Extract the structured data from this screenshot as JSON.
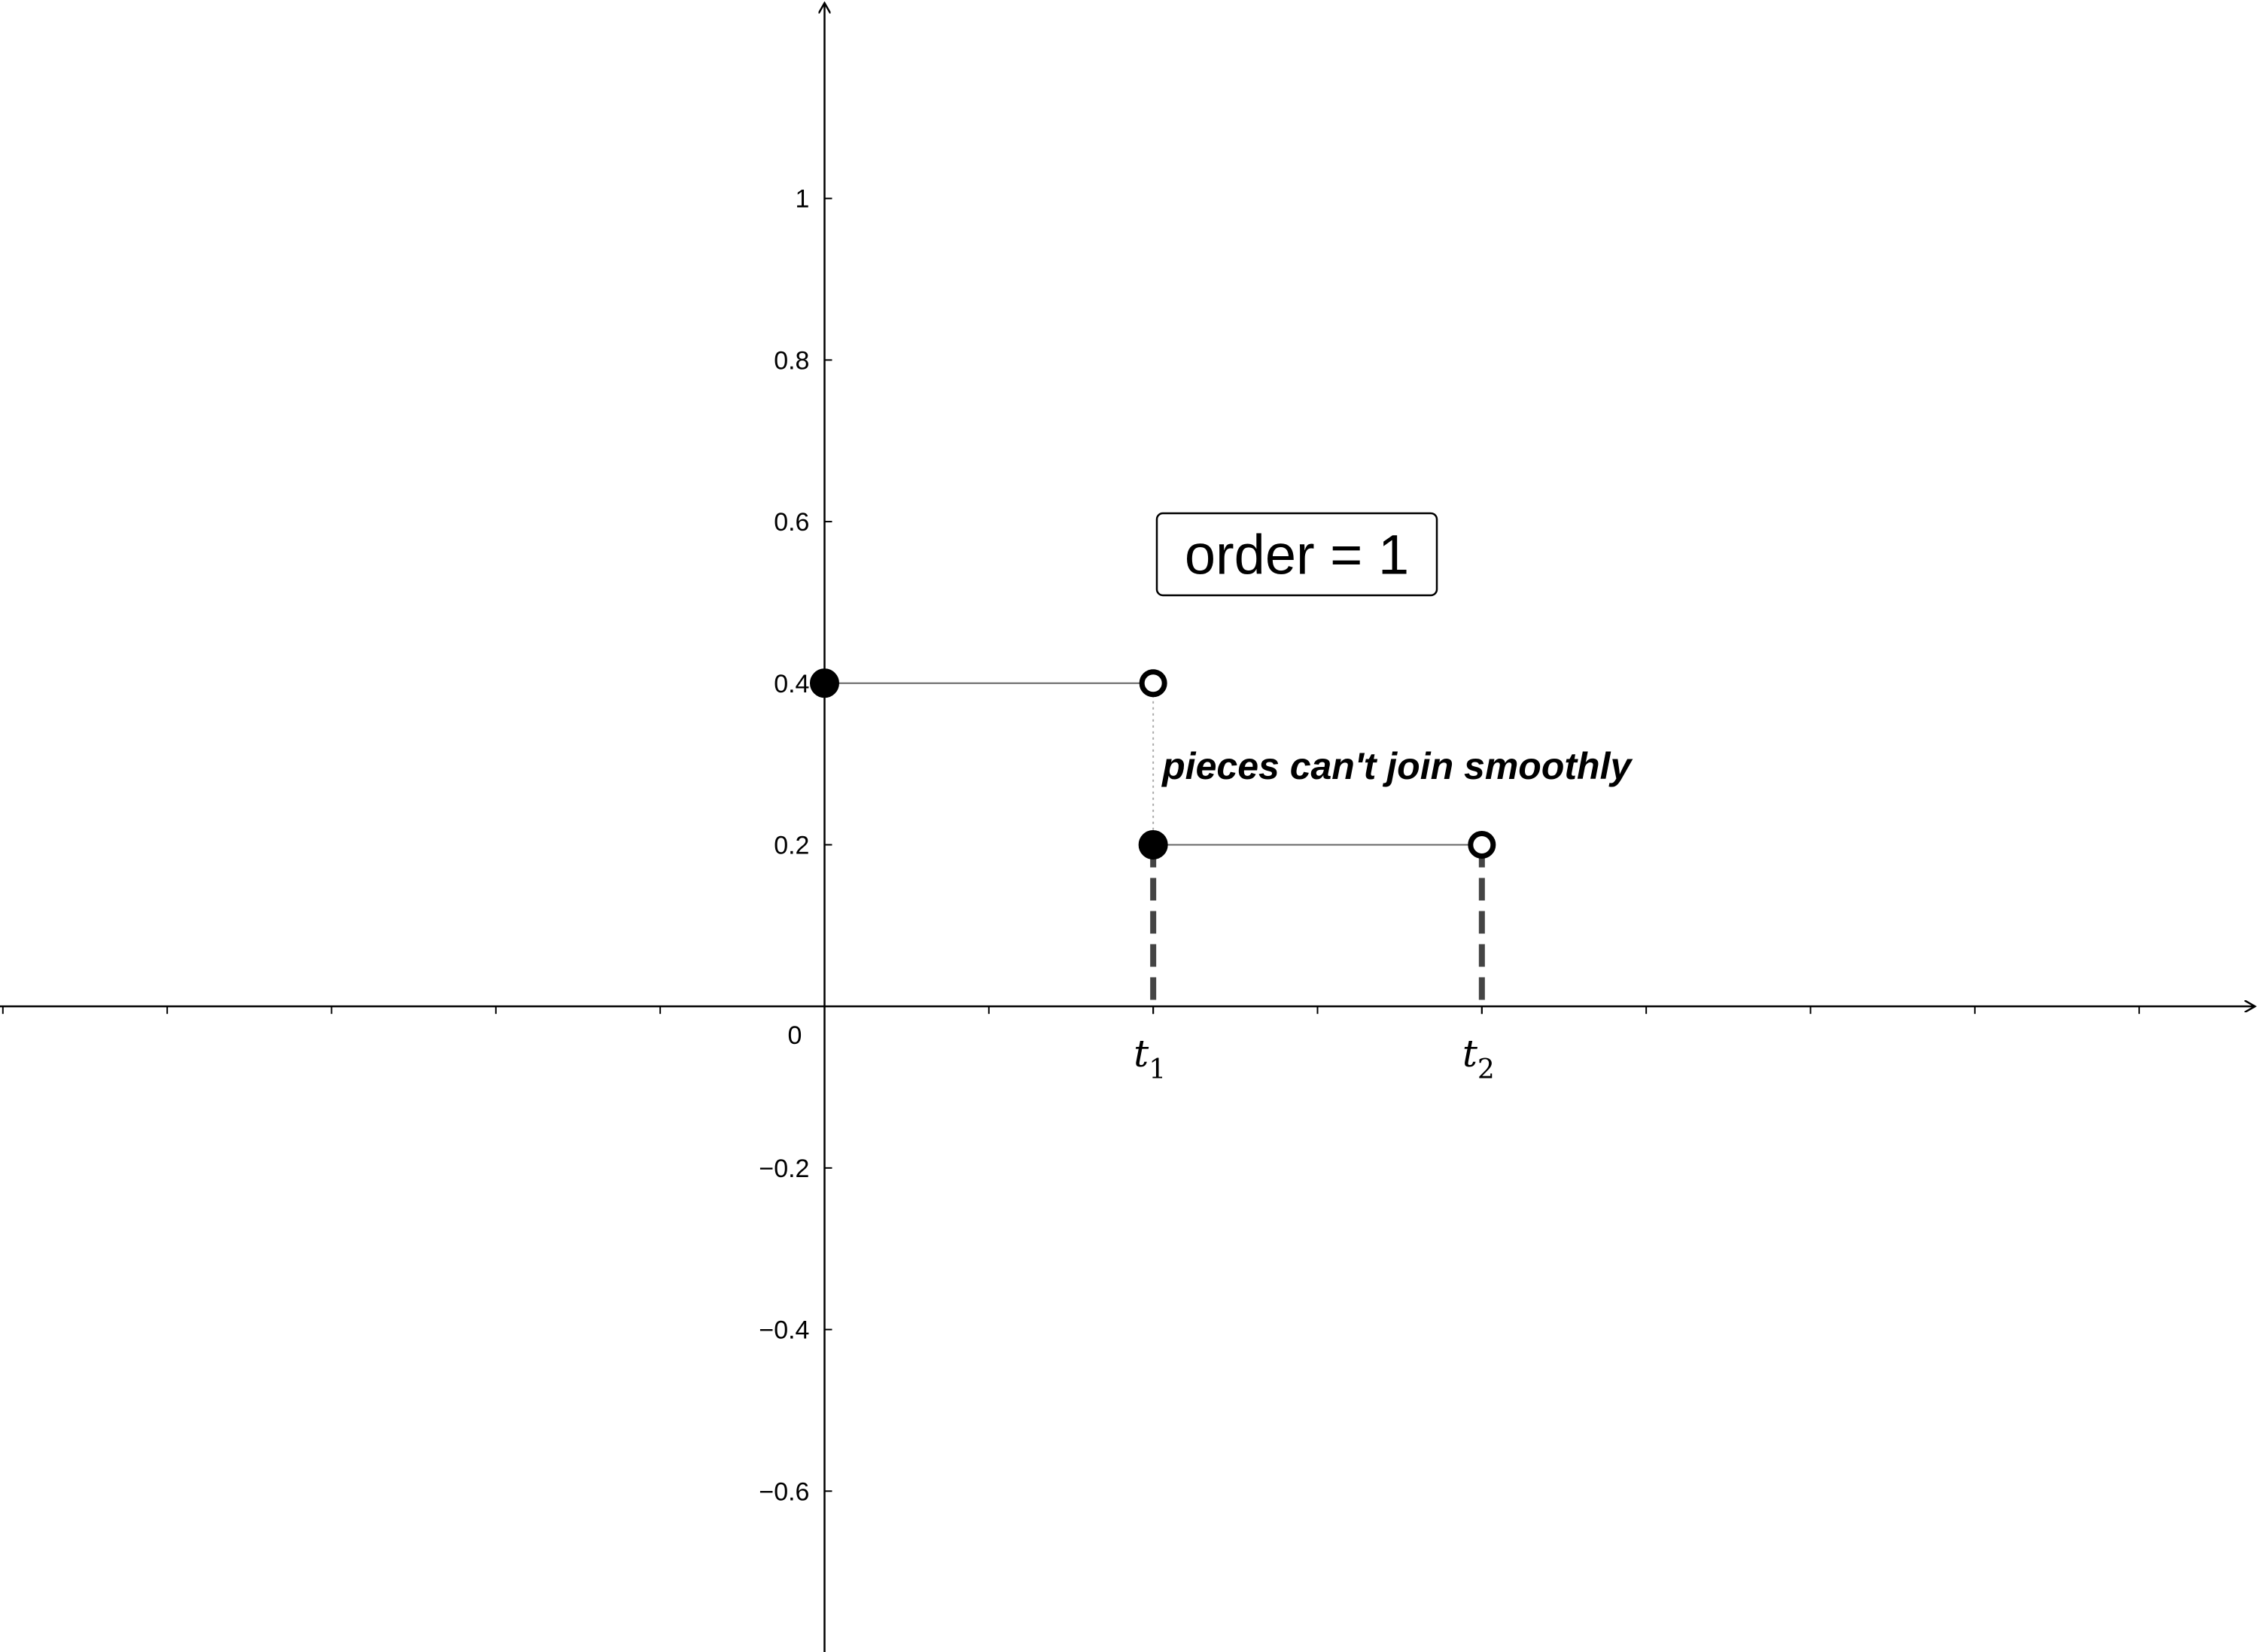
{
  "chart_data": {
    "type": "line",
    "title": "",
    "xlabel": "",
    "ylabel": "",
    "xlim": [
      -1.0035,
      1.7446
    ],
    "ylim": [
      -0.7991,
      1.2456
    ],
    "grid": false,
    "x_ticks": [
      -1,
      -0.8,
      -0.6,
      -0.4,
      -0.2,
      0.2,
      0.4,
      0.6,
      0.8,
      1.0,
      1.2,
      1.4,
      1.6
    ],
    "origin_label": "0",
    "knots": [
      {
        "x": 0.4,
        "name": "t",
        "sub": "1"
      },
      {
        "x": 0.8,
        "name": "t",
        "sub": "2"
      }
    ],
    "y_ticks": [
      {
        "value": 1,
        "label": "1"
      },
      {
        "value": 0.8,
        "label": "0.8"
      },
      {
        "value": 0.6,
        "label": "0.6"
      },
      {
        "value": 0.4,
        "label": "0.4"
      },
      {
        "value": 0.2,
        "label": "0.2"
      },
      {
        "value": -0.2,
        "label": "−0.2"
      },
      {
        "value": -0.4,
        "label": "−0.4"
      },
      {
        "value": -0.6,
        "label": "−0.6"
      }
    ],
    "pieces": [
      {
        "x_start": 0,
        "x_end": 0.4,
        "y": 0.4,
        "start_closed": true,
        "end_closed": false
      },
      {
        "x_start": 0.4,
        "x_end": 0.8,
        "y": 0.2,
        "start_closed": true,
        "end_closed": false
      }
    ],
    "annotation": "pieces can't join smoothly",
    "order_box": "order = 1"
  },
  "colors": {
    "axis": "#000000",
    "piece_line": "#666666",
    "dashed_drop": "#444444",
    "point_fill": "#000000"
  }
}
